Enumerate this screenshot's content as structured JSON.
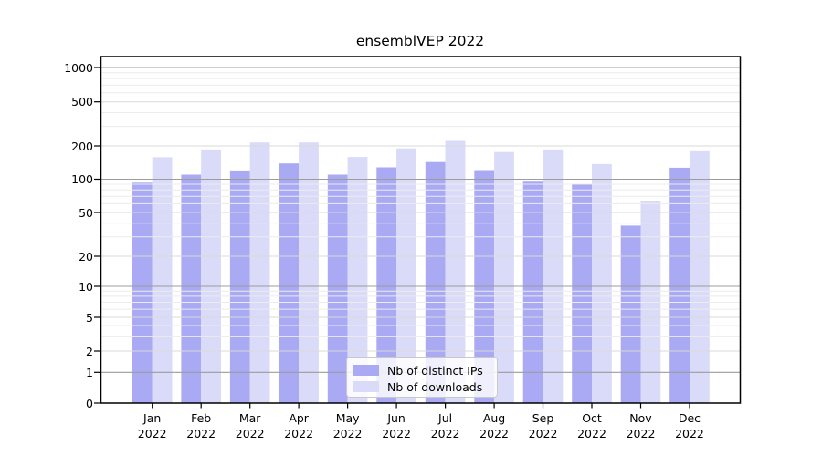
{
  "chart_data": {
    "type": "bar",
    "title": "ensemblVEP 2022",
    "categories": [
      "Jan 2022",
      "Feb 2022",
      "Mar 2022",
      "Apr 2022",
      "May 2022",
      "Jun 2022",
      "Jul 2022",
      "Aug 2022",
      "Sep 2022",
      "Oct 2022",
      "Nov 2022",
      "Dec 2022"
    ],
    "series": [
      {
        "name": "Nb of distinct IPs",
        "color": "#a9a9f4",
        "values": [
          93,
          110,
          120,
          139,
          110,
          128,
          143,
          121,
          95,
          90,
          38,
          127
        ]
      },
      {
        "name": "Nb of downloads",
        "color": "#dadaf9",
        "values": [
          158,
          186,
          215,
          215,
          159,
          190,
          222,
          176,
          186,
          137,
          64,
          179
        ]
      }
    ],
    "xlabel": "",
    "ylabel": "",
    "yscale": "symlog (logarithmic above 1, linear 0-1)",
    "yticks": [
      0,
      1,
      2,
      5,
      10,
      20,
      50,
      100,
      200,
      500,
      1000
    ],
    "ylim": [
      0,
      1300
    ],
    "grid": "horizontal major+minor log gridlines, drawn on top of bars",
    "legend_position": "lower center inside plot",
    "colors": {
      "strong_gridline": "#9c9c9c",
      "medium_gridline": "#d9d9d9",
      "minor_gridline": "#ececec",
      "axis_spine": "#000000"
    }
  }
}
